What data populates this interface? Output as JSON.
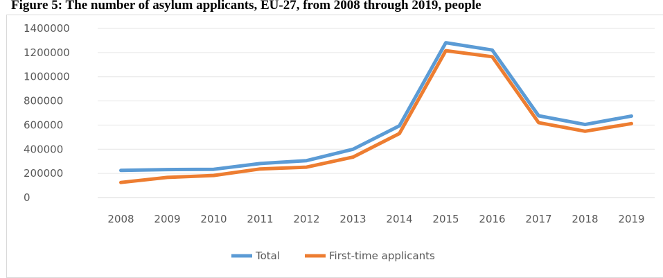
{
  "chart_data": {
    "type": "line",
    "title": "Figure 5: The number of asylum applicants, EU-27, from 2008 through 2019, people",
    "xlabel": "",
    "ylabel": "",
    "x": [
      "2008",
      "2009",
      "2010",
      "2011",
      "2012",
      "2013",
      "2014",
      "2015",
      "2016",
      "2017",
      "2018",
      "2019"
    ],
    "ylim": [
      0,
      1400000
    ],
    "yticks": [
      "0",
      "200000",
      "400000",
      "600000",
      "800000",
      "1000000",
      "1200000",
      "1400000"
    ],
    "grid": true,
    "legend_position": "bottom",
    "series": [
      {
        "name": "Total",
        "color": "#5b9bd5",
        "values": [
          225000,
          232000,
          234000,
          282000,
          306000,
          400000,
          594000,
          1282000,
          1221000,
          677000,
          605000,
          675000
        ]
      },
      {
        "name": "First-time applicants",
        "color": "#ed7d31",
        "values": [
          125000,
          167000,
          183000,
          237000,
          252000,
          335000,
          530000,
          1216000,
          1166000,
          620000,
          549000,
          612000
        ]
      }
    ]
  }
}
